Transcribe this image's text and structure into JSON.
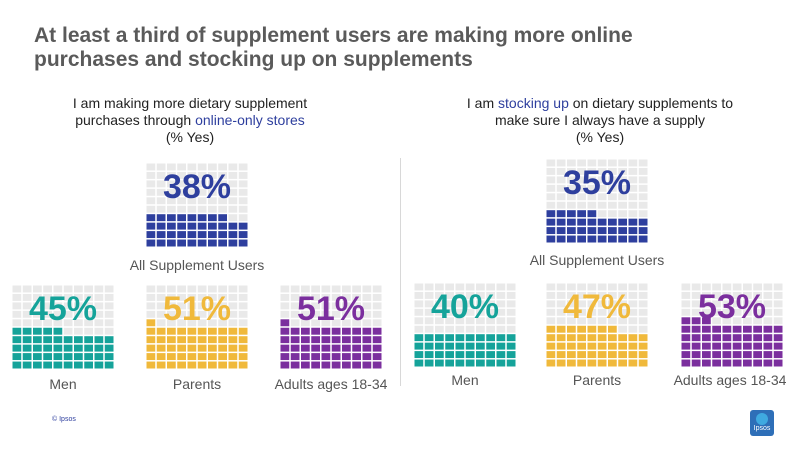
{
  "title_line1": "At least a third of supplement users are making more online",
  "title_line2": "purchases and stocking up on supplements",
  "left_question": {
    "line1": "I am making more dietary supplement",
    "line2_pre": "purchases through ",
    "line2_highlight": "online-only stores",
    "line3": "(% Yes)"
  },
  "right_question": {
    "line1_pre": "I am ",
    "line1_highlight": "stocking up",
    "line1_post": " on dietary supplements to",
    "line2": "make sure I always have a supply",
    "line3": "(% Yes)"
  },
  "colors": {
    "all": "#2e3f9e",
    "men": "#15a39a",
    "parents": "#f0b93b",
    "adults": "#7b2f9e",
    "grid_bg": "#e9e9e9",
    "title": "#5a5a5a",
    "highlight": "#2e3f9e"
  },
  "chart_data": [
    {
      "type": "waffle",
      "title": "I am making more dietary supplement purchases through online-only stores (% Yes)",
      "categories": [
        "All Supplement Users",
        "Men",
        "Parents",
        "Adults ages 18-34"
      ],
      "values": [
        38,
        45,
        51,
        51
      ],
      "labels": [
        "38%",
        "45%",
        "51%",
        "51%"
      ],
      "unit": "%"
    },
    {
      "type": "waffle",
      "title": "I am stocking up on dietary supplements to make sure I always have a supply (% Yes)",
      "categories": [
        "All Supplement Users",
        "Men",
        "Parents",
        "Adults ages 18-34"
      ],
      "values": [
        35,
        40,
        47,
        53
      ],
      "labels": [
        "35%",
        "40%",
        "47%",
        "53%"
      ],
      "unit": "%"
    }
  ],
  "copyright": "© Ipsos",
  "logo_text": "Ipsos"
}
